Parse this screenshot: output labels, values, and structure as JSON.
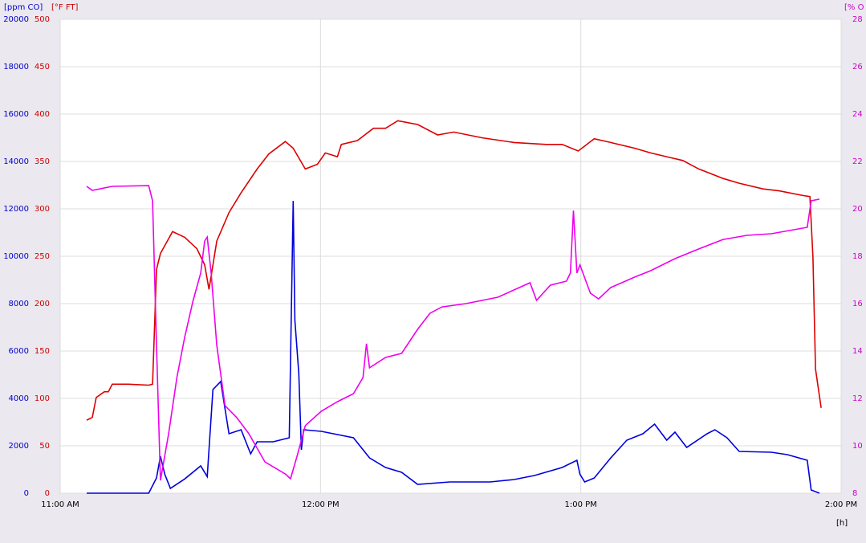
{
  "chart_data": {
    "type": "line",
    "ylabel": "[ppm CO]",
    "y2label": "[°F FT]",
    "y3label": "[% O",
    "xlabel": "[h]",
    "xlim": [
      660,
      840
    ],
    "xticks": [
      {
        "value": 660,
        "label": "11:00 AM"
      },
      {
        "value": 720,
        "label": "12:00 PM"
      },
      {
        "value": 780,
        "label": "1:00 PM"
      },
      {
        "value": 840,
        "label": "2:00 PM"
      }
    ],
    "ylim": [
      0,
      20000
    ],
    "yticks": [
      0,
      2000,
      4000,
      6000,
      8000,
      10000,
      12000,
      14000,
      16000,
      18000,
      20000
    ],
    "ycolor": "#0000cc",
    "y2lim": [
      0,
      500
    ],
    "y2ticks": [
      0,
      50,
      100,
      150,
      200,
      250,
      300,
      350,
      400,
      450,
      500
    ],
    "y2color": "#cc0000",
    "y3lim": [
      8,
      28
    ],
    "y3ticks": [
      8,
      10,
      12,
      14,
      16,
      18,
      20,
      22,
      24,
      26,
      28
    ],
    "y3color": "#cc00cc",
    "grid": true,
    "series": [
      {
        "color": "#dd0000",
        "axis": "y2",
        "x": [
          666.1,
          667.4,
          668.3,
          670.2,
          671.1,
          672.0,
          675.7,
          680.4,
          681.3,
          682.2,
          683.1,
          685.9,
          688.7,
          691.5,
          693.3,
          694.3,
          696.1,
          698.9,
          701.7,
          705.4,
          708.1,
          711.9,
          713.7,
          716.5,
          719.3,
          721.1,
          723.9,
          724.8,
          728.5,
          732.2,
          735.0,
          737.8,
          742.4,
          747.0,
          750.7,
          757.2,
          764.6,
          772.0,
          775.7,
          779.4,
          783.1,
          786.9,
          792.4,
          796.1,
          799.8,
          803.5,
          807.2,
          812.8,
          816.5,
          822.0,
          825.7,
          831.3,
          832.8,
          833.5,
          834.1,
          835.4
        ],
        "values": [
          77,
          80,
          101,
          107,
          107,
          115,
          115,
          114,
          115,
          236,
          253,
          276,
          270,
          258,
          241,
          215,
          266,
          296,
          317,
          342,
          358,
          371,
          364,
          342,
          347,
          359,
          355,
          368,
          372,
          385,
          385,
          393,
          389,
          378,
          381,
          375,
          370,
          368,
          368,
          361,
          374,
          370,
          364,
          359,
          355,
          351,
          342,
          332,
          327,
          321,
          319,
          314,
          313,
          249,
          131,
          90
        ]
      },
      {
        "color": "#0000dd",
        "axis": "y",
        "x": [
          666.1,
          680.4,
          682.2,
          683.1,
          684.1,
          685.4,
          688.7,
          692.4,
          693.9,
          695.2,
          697.0,
          698.9,
          701.7,
          703.9,
          705.4,
          709.1,
          712.8,
          713.7,
          714.1,
          715.0,
          715.6,
          716.1,
          720.2,
          727.6,
          731.3,
          735.0,
          738.7,
          742.4,
          749.8,
          759.1,
          764.6,
          769.3,
          775.7,
          779.1,
          779.8,
          780.9,
          783.1,
          786.9,
          790.6,
          794.3,
          797.0,
          799.8,
          801.7,
          804.4,
          809.1,
          810.9,
          813.7,
          816.5,
          823.9,
          827.6,
          832.2,
          833.1,
          835.0
        ],
        "values": [
          0,
          0,
          644,
          1559,
          800,
          203,
          600,
          1153,
          700,
          4373,
          4712,
          2508,
          2678,
          1661,
          2169,
          2169,
          2339,
          12339,
          7300,
          5051,
          1831,
          2678,
          2610,
          2339,
          1492,
          1085,
          880,
          373,
          475,
          475,
          576,
          746,
          1085,
          1390,
          800,
          475,
          640,
          1492,
          2237,
          2508,
          2915,
          2237,
          2576,
          1932,
          2508,
          2678,
          2339,
          1763,
          1729,
          1627,
          1390,
          136,
          0
        ]
      },
      {
        "color": "#ee00ee",
        "axis": "y3",
        "x": [
          666.1,
          667.4,
          672.0,
          680.4,
          681.3,
          682.2,
          683.1,
          685.0,
          686.9,
          688.7,
          690.6,
          692.4,
          693.3,
          693.9,
          694.8,
          696.1,
          698.0,
          700.7,
          703.5,
          707.2,
          711.9,
          713.1,
          714.6,
          716.5,
          720.2,
          723.9,
          727.6,
          729.8,
          730.6,
          731.3,
          735.0,
          738.7,
          742.4,
          745.2,
          748.0,
          753.5,
          760.9,
          768.3,
          769.8,
          773.0,
          776.7,
          777.6,
          778.3,
          779.1,
          779.8,
          782.2,
          784.1,
          786.9,
          792.4,
          796.1,
          801.7,
          807.2,
          812.8,
          818.3,
          823.9,
          832.2,
          833.1,
          835.0
        ],
        "values": [
          20.95,
          20.78,
          20.95,
          20.98,
          20.34,
          14.24,
          8.54,
          10.51,
          12.88,
          14.58,
          16.1,
          17.29,
          18.64,
          18.81,
          17.29,
          14.24,
          11.69,
          11.19,
          10.51,
          9.32,
          8.81,
          8.61,
          9.56,
          10.85,
          11.46,
          11.86,
          12.2,
          12.88,
          14.31,
          13.29,
          13.73,
          13.9,
          14.92,
          15.59,
          15.86,
          16.0,
          16.27,
          16.88,
          16.14,
          16.78,
          16.95,
          17.29,
          19.93,
          17.29,
          17.63,
          16.44,
          16.2,
          16.68,
          17.12,
          17.39,
          17.9,
          18.31,
          18.71,
          18.88,
          18.95,
          19.22,
          20.34,
          20.41
        ]
      }
    ]
  }
}
